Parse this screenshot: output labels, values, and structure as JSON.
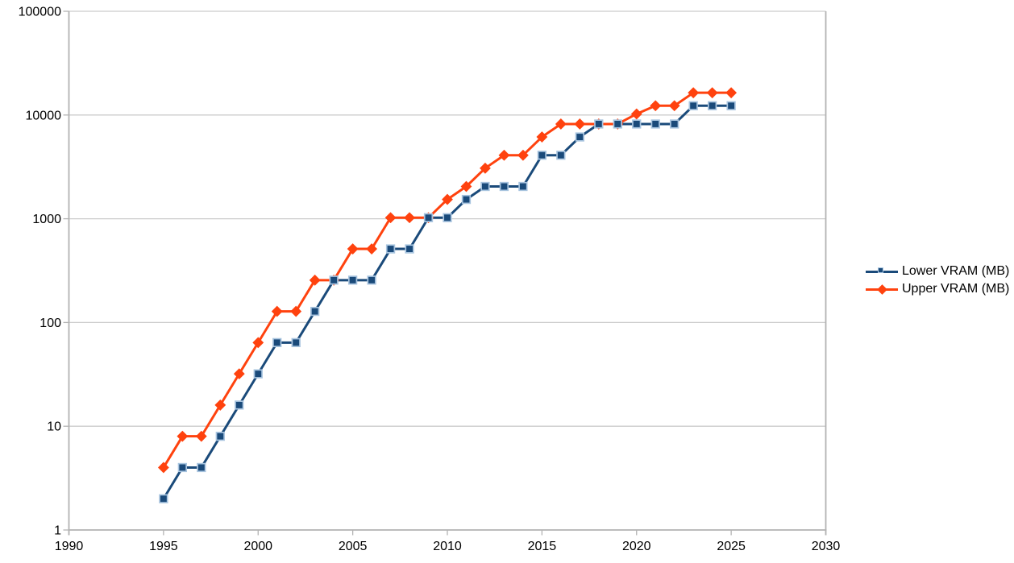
{
  "chart_data": {
    "type": "line",
    "title": "",
    "x": [
      1995,
      1996,
      1997,
      1998,
      1999,
      2000,
      2001,
      2002,
      2003,
      2004,
      2005,
      2006,
      2007,
      2008,
      2009,
      2010,
      2011,
      2012,
      2013,
      2014,
      2015,
      2016,
      2017,
      2018,
      2019,
      2020,
      2021,
      2022,
      2023,
      2024,
      2025
    ],
    "series": [
      {
        "name": "Lower VRAM (MB)",
        "color": "#1A4A7A",
        "marker": "square",
        "marker_border": "#A8C4DF",
        "values": [
          2,
          4,
          4,
          8,
          16,
          32,
          64,
          64,
          128,
          256,
          256,
          256,
          512,
          512,
          1024,
          1024,
          1536,
          2048,
          2048,
          2048,
          4096,
          4096,
          6144,
          8192,
          8192,
          8192,
          8192,
          8192,
          12288,
          12288,
          12288
        ]
      },
      {
        "name": "Upper VRAM (MB)",
        "color": "#FF420E",
        "marker": "diamond",
        "marker_border": "#FF420E",
        "values": [
          4,
          8,
          8,
          16,
          32,
          64,
          128,
          128,
          256,
          256,
          512,
          512,
          1024,
          1024,
          1024,
          1536,
          2048,
          3072,
          4096,
          4096,
          6144,
          8192,
          8192,
          8192,
          8192,
          10240,
          12288,
          12288,
          16384,
          16384,
          16384
        ]
      }
    ],
    "x_axis": {
      "min": 1990,
      "max": 2030,
      "ticks": [
        1990,
        1995,
        2000,
        2005,
        2010,
        2015,
        2020,
        2025,
        2030
      ]
    },
    "y_axis": {
      "scale": "log",
      "min": 1,
      "max": 100000,
      "ticks": [
        1,
        10,
        100,
        1000,
        10000,
        100000
      ],
      "tick_labels": [
        "1",
        "10",
        "100",
        "1000",
        "10000",
        "100000"
      ]
    },
    "grid": "horizontal",
    "legend_position": "right",
    "style": {
      "background": "#FFFFFF",
      "gridline_color": "#CCCCCC",
      "axis_color": "#B3B3B3",
      "text_color": "#000000"
    }
  },
  "legend": {
    "items": [
      {
        "label": "Lower VRAM (MB)"
      },
      {
        "label": "Upper VRAM (MB)"
      }
    ]
  }
}
